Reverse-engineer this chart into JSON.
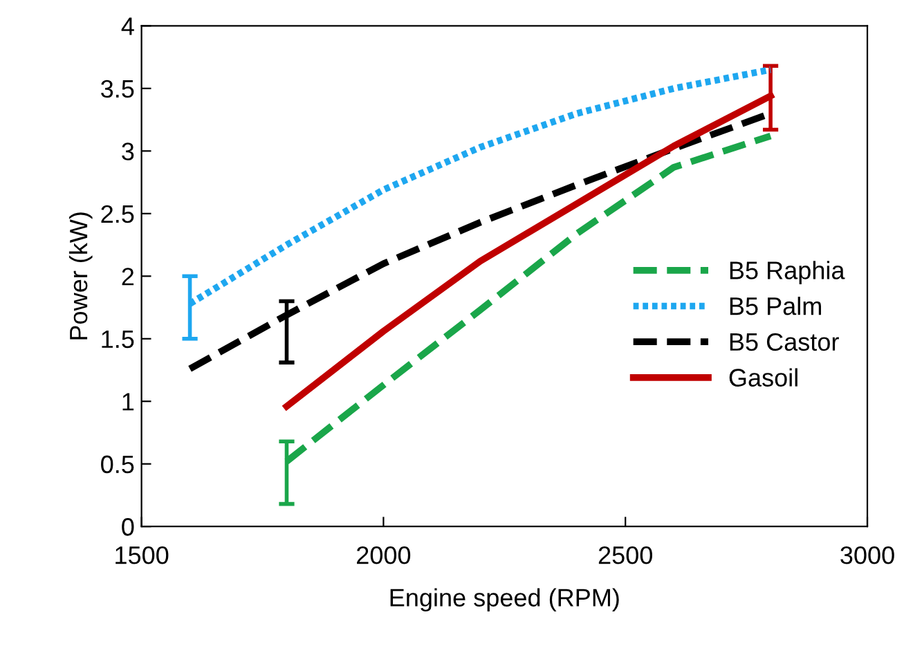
{
  "chart_data": {
    "type": "line",
    "xlabel": "Engine speed (RPM)",
    "ylabel": "Power (kW)",
    "xlim": [
      1500,
      3000
    ],
    "xticks": [
      1500,
      2000,
      2500,
      3000
    ],
    "ylim": [
      0,
      4
    ],
    "yticks": [
      0,
      0.5,
      1,
      1.5,
      2,
      2.5,
      3,
      3.5,
      4
    ],
    "grid": false,
    "legend": "right",
    "marker": "none",
    "series": [
      {
        "name": "B5 Raphia",
        "color": "#1aa64a",
        "line_style": "dashed",
        "x": [
          1800,
          2000,
          2200,
          2400,
          2600,
          2800
        ],
        "values": [
          0.52,
          1.13,
          1.73,
          2.34,
          2.87,
          3.12
        ],
        "errors": [
          [
            0.18,
            0.68
          ],
          null,
          null,
          null,
          null,
          null
        ]
      },
      {
        "name": "B5 Palm",
        "color": "#1ea7f0",
        "line_style": "dotted",
        "x": [
          1600,
          1800,
          2000,
          2200,
          2400,
          2600,
          2800
        ],
        "values": [
          1.78,
          2.25,
          2.69,
          3.03,
          3.3,
          3.5,
          3.65
        ],
        "errors": [
          [
            1.5,
            2.0
          ],
          null,
          null,
          null,
          null,
          null,
          null
        ]
      },
      {
        "name": "B5 Castor",
        "color": "#000000",
        "line_style": "dashed",
        "x": [
          1600,
          1800,
          2000,
          2200,
          2400,
          2600,
          2800
        ],
        "values": [
          1.26,
          1.69,
          2.1,
          2.43,
          2.73,
          3.02,
          3.3
        ],
        "errors": [
          null,
          [
            1.31,
            1.8
          ],
          null,
          null,
          null,
          null,
          null
        ]
      },
      {
        "name": "Gasoil",
        "color": "#c00000",
        "line_style": "solid",
        "x": [
          1800,
          2000,
          2200,
          2400,
          2600,
          2800
        ],
        "values": [
          0.96,
          1.56,
          2.12,
          2.58,
          3.04,
          3.44
        ],
        "errors": [
          null,
          null,
          null,
          null,
          null,
          [
            3.17,
            3.68
          ]
        ]
      }
    ]
  }
}
